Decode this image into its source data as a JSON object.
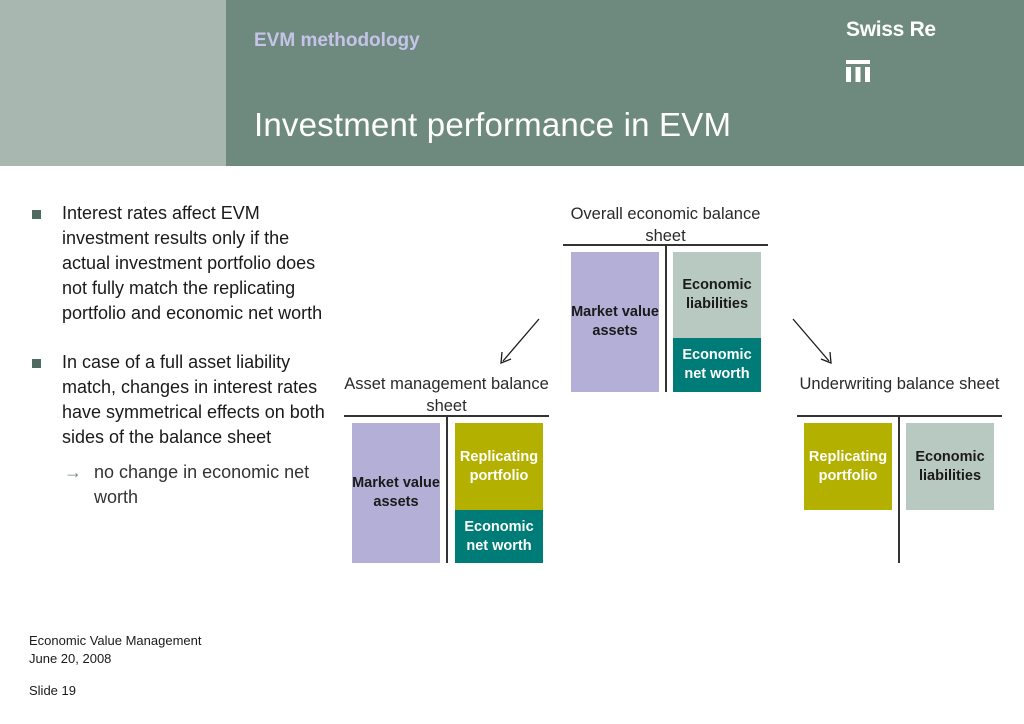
{
  "header": {
    "section_title": "EVM methodology",
    "slide_title": "Investment performance in EVM",
    "brand": "Swiss Re",
    "brand_logo_icon": "swiss-re-logo-icon",
    "colors": {
      "header_bg": "#6e8a7f",
      "header_left_bg": "#a8b8b0",
      "section_title": "#c5c4e8"
    }
  },
  "bullets": [
    {
      "text": "Interest rates affect EVM investment results only if the actual investment portfolio does not fully match the replicating portfolio and economic net worth"
    },
    {
      "text": "In case of a full asset liability match, changes in interest rates have symmetrical effects on both sides of the balance sheet"
    }
  ],
  "sub_bullet": {
    "arrow_icon": "arrow-right-icon",
    "text": "no change in economic net worth"
  },
  "diagram": {
    "overall": {
      "heading": "Overall economic balance sheet",
      "left": "Market value assets",
      "right_top": "Economic liabilities",
      "right_bottom": "Economic net worth"
    },
    "asset_mgmt": {
      "heading": "Asset management balance sheet",
      "left": "Market value assets",
      "right_top": "Replicating portfolio",
      "right_bottom": "Economic net worth"
    },
    "underwriting": {
      "heading": "Underwriting balance sheet",
      "left": "Replicating portfolio",
      "right": "Economic liabilities"
    },
    "colors": {
      "purple": "#b3afd6",
      "lightgray": "#b8c9c1",
      "teal": "#007c78",
      "olive": "#b4b000"
    }
  },
  "footer": {
    "line1": "Economic Value Management",
    "line2": "June 20, 2008",
    "slide": "Slide 19"
  }
}
